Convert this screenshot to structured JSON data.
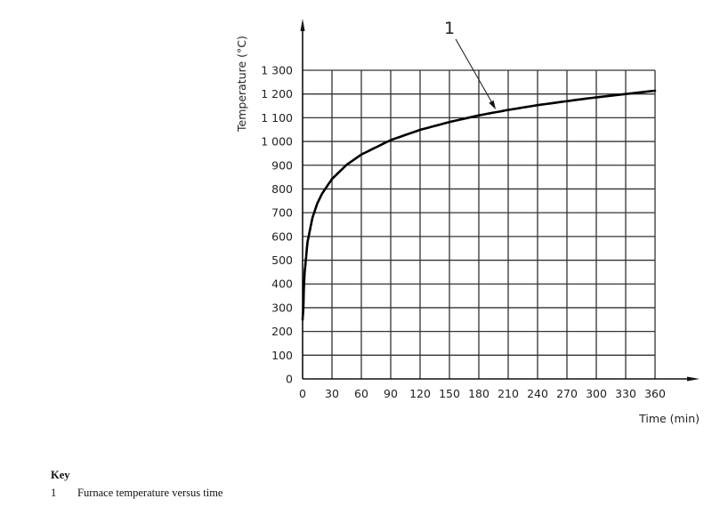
{
  "chart_data": {
    "type": "line",
    "title": "",
    "xlabel": "Time (min)",
    "ylabel": "Temperature (°C)",
    "xlim": [
      0,
      360
    ],
    "ylim": [
      0,
      1300
    ],
    "grid": true,
    "x_ticks": [
      0,
      30,
      60,
      90,
      120,
      150,
      180,
      210,
      240,
      270,
      300,
      330,
      360
    ],
    "x_tick_labels": [
      "0",
      "30",
      "60",
      "90",
      "120",
      "150",
      "180",
      "210",
      "240",
      "270",
      "300",
      "330",
      "360"
    ],
    "y_ticks": [
      0,
      100,
      200,
      300,
      400,
      500,
      600,
      700,
      800,
      900,
      1000,
      1100,
      1200,
      1300
    ],
    "y_tick_labels": [
      "0",
      "100",
      "200",
      "300",
      "400",
      "500",
      "600",
      "700",
      "800",
      "900",
      "1 000",
      "1 100",
      "1 200",
      "1 300"
    ],
    "series": [
      {
        "name": "Furnace temperature versus time",
        "callout": "1",
        "x": [
          0,
          1,
          2,
          5,
          10,
          15,
          20,
          30,
          45,
          60,
          90,
          120,
          150,
          180,
          210,
          240,
          270,
          300,
          330,
          360
        ],
        "y": [
          20,
          349,
          445,
          576,
          678,
          739,
          781,
          842,
          902,
          945,
          1006,
          1049,
          1082,
          1110,
          1133,
          1153,
          1170,
          1186,
          1200,
          1214
        ]
      }
    ],
    "annotations": [
      {
        "text": "1",
        "points_to_x": 200,
        "points_to_y": 1125
      }
    ]
  },
  "key": {
    "title": "Key",
    "items": [
      {
        "num": "1",
        "label": "Furnace temperature versus time"
      }
    ]
  }
}
